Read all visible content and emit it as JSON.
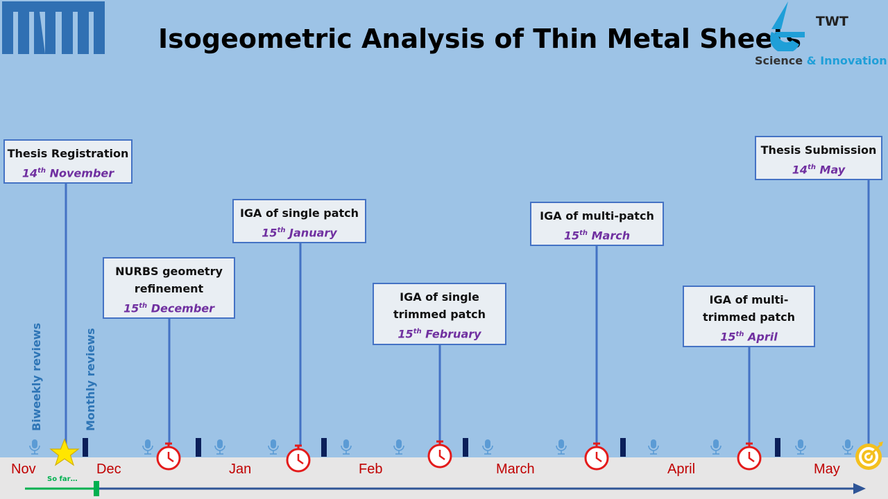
{
  "header": {
    "title": "Isogeometric Analysis of Thin Metal Sheets",
    "twt_name": "TWT",
    "twt_tagline_a": "Science",
    "twt_tagline_amp": "&",
    "twt_tagline_b": "Innovation"
  },
  "side_labels": {
    "biweekly": "Biweekly reviews",
    "monthly": "Monthly reviews"
  },
  "milestones": [
    {
      "title_1": "Thesis Registration",
      "title_2": "",
      "day": "14",
      "sup": "th",
      "month": "November"
    },
    {
      "title_1": "NURBS geometry",
      "title_2": "refinement",
      "day": "15",
      "sup": "th",
      "month": "December"
    },
    {
      "title_1": "IGA of single patch",
      "title_2": "",
      "day": "15",
      "sup": "th",
      "month": "January"
    },
    {
      "title_1": "IGA of single",
      "title_2": "trimmed patch",
      "day": "15",
      "sup": "th",
      "month": "February"
    },
    {
      "title_1": "IGA of multi-patch",
      "title_2": "",
      "day": "15",
      "sup": "th",
      "month": "March"
    },
    {
      "title_1": "IGA of multi-",
      "title_2": "trimmed patch",
      "day": "15",
      "sup": "th",
      "month": "April"
    },
    {
      "title_1": "Thesis Submission",
      "title_2": "",
      "day": "14",
      "sup": "th",
      "month": "May"
    }
  ],
  "axis": {
    "months": [
      "Nov",
      "Dec",
      "Jan",
      "Feb",
      "March",
      "April",
      "May"
    ],
    "progress_label": "So far…",
    "progress_fraction": 0.1
  },
  "colors": {
    "background": "#9dc3e6",
    "box_border": "#4472c4",
    "date_text": "#7030a0",
    "month_text": "#c00000",
    "stopwatch": "#e31b1b",
    "star": "#ffe600",
    "progress": "#00b050",
    "axis_arrow": "#2f5597",
    "tum_blue": "#3070b3"
  },
  "icons": {
    "review": "microphone-icon",
    "monthly_review": "bar-marker",
    "deadline": "stopwatch-icon",
    "start": "star-icon",
    "finish": "target-icon"
  }
}
